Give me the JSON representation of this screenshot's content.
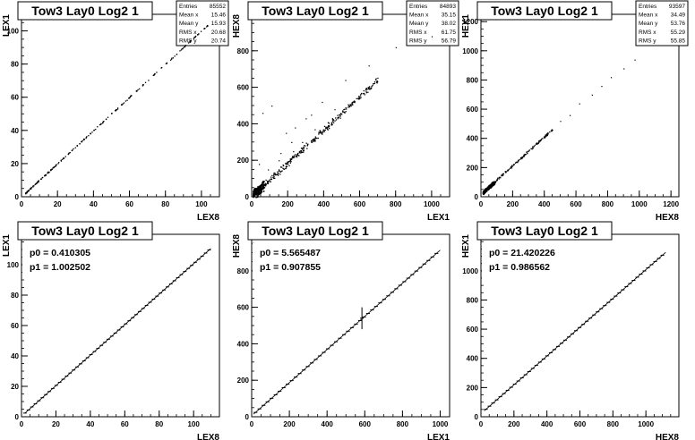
{
  "chart_data": [
    {
      "type": "scatter",
      "title": "Tow3 Lay0 Log2 1",
      "xlabel": "LEX8",
      "ylabel": "LEX1",
      "xlim": [
        0,
        110
      ],
      "ylim": [
        0,
        110
      ],
      "xticks": [
        0,
        20,
        40,
        60,
        80,
        100
      ],
      "yticks": [
        0,
        20,
        40,
        60,
        80,
        100
      ],
      "stats": [
        {
          "label": "Entries",
          "value": "85552"
        },
        {
          "label": "Mean x",
          "value": "15.46"
        },
        {
          "label": "Mean y",
          "value": "15.93"
        },
        {
          "label": "RMS x",
          "value": "20.68"
        },
        {
          "label": "RMS y",
          "value": "20.74"
        }
      ],
      "trend": {
        "slope": 1.0,
        "intercept": 0.4,
        "xmin": 2,
        "xmax": 105,
        "spread": 0.5,
        "tail": 0
      },
      "points": 220
    },
    {
      "type": "scatter",
      "title": "Tow3 Lay0 Log2 1",
      "xlabel": "LEX1",
      "ylabel": "HEX8",
      "xlim": [
        0,
        1100
      ],
      "ylim": [
        0,
        1000
      ],
      "xticks": [
        0,
        200,
        400,
        600,
        800,
        1000
      ],
      "yticks": [
        0,
        200,
        400,
        600,
        800
      ],
      "stats": [
        {
          "label": "Entries",
          "value": "84893"
        },
        {
          "label": "Mean x",
          "value": "35.15"
        },
        {
          "label": "Mean y",
          "value": "38.02"
        },
        {
          "label": "RMS x",
          "value": "61.75"
        },
        {
          "label": "RMS y",
          "value": "56.79"
        }
      ],
      "trend": {
        "slope": 0.91,
        "intercept": 5.6,
        "xmin": 5,
        "xmax": 700,
        "spread": 22,
        "tail": 0
      },
      "outliers": [
        [
          60,
          460
        ],
        [
          110,
          500
        ],
        [
          190,
          350
        ],
        [
          240,
          380
        ],
        [
          220,
          300
        ],
        [
          160,
          240
        ],
        [
          300,
          430
        ],
        [
          390,
          520
        ],
        [
          330,
          450
        ],
        [
          520,
          640
        ],
        [
          650,
          720
        ],
        [
          800,
          820
        ],
        [
          1000,
          880
        ],
        [
          280,
          300
        ],
        [
          150,
          200
        ],
        [
          90,
          150
        ],
        [
          40,
          180
        ],
        [
          230,
          250
        ],
        [
          350,
          370
        ],
        [
          460,
          480
        ]
      ],
      "points": 380
    },
    {
      "type": "scatter",
      "title": "Tow3 Lay0 Log2 1",
      "xlabel": "HEX8",
      "ylabel": "HEX1",
      "xlim": [
        0,
        1250
      ],
      "ylim": [
        0,
        1250
      ],
      "xticks": [
        0,
        200,
        400,
        600,
        800,
        1000,
        1200
      ],
      "yticks": [
        0,
        200,
        400,
        600,
        800,
        1000,
        1200
      ],
      "stats": [
        {
          "label": "Entries",
          "value": "93597"
        },
        {
          "label": "Mean x",
          "value": "34.49"
        },
        {
          "label": "Mean y",
          "value": "53.76"
        },
        {
          "label": "RMS x",
          "value": "55.29"
        },
        {
          "label": "RMS y",
          "value": "55.85"
        }
      ],
      "trend": {
        "slope": 0.986,
        "intercept": 21.4,
        "xmin": 10,
        "xmax": 450,
        "spread": 10,
        "tail": 0
      },
      "outliers": [
        [
          500,
          520
        ],
        [
          560,
          560
        ],
        [
          620,
          640
        ],
        [
          700,
          700
        ],
        [
          760,
          760
        ],
        [
          820,
          820
        ],
        [
          900,
          880
        ],
        [
          970,
          940
        ],
        [
          420,
          440
        ],
        [
          380,
          400
        ]
      ],
      "points": 200
    },
    {
      "type": "line",
      "title": "Tow3 Lay0 Log2 1",
      "xlabel": "LEX8",
      "ylabel": "LEX1",
      "xlim": [
        0,
        115
      ],
      "ylim": [
        0,
        120
      ],
      "xticks": [
        0,
        20,
        40,
        60,
        80,
        100
      ],
      "yticks": [
        0,
        20,
        40,
        60,
        80,
        100
      ],
      "fit_params": [
        "p0 = 0.410305",
        "p1 = 1.002502"
      ],
      "fit": {
        "p0": 0.410305,
        "p1": 1.002502,
        "xmin": 2,
        "xmax": 110
      },
      "profile": {
        "xmin": 2,
        "xmax": 109,
        "n": 54,
        "half_width": 1
      }
    },
    {
      "type": "line",
      "title": "Tow3 Lay0 Log2 1",
      "xlabel": "LEX1",
      "ylabel": "HEX8",
      "xlim": [
        0,
        1050
      ],
      "ylim": [
        0,
        1000
      ],
      "xticks": [
        0,
        200,
        400,
        600,
        800,
        1000
      ],
      "yticks": [
        0,
        200,
        400,
        600,
        800
      ],
      "fit_params": [
        "p0 = 5.565487",
        "p1 = 0.907855"
      ],
      "fit": {
        "p0": 5.565487,
        "p1": 0.907855,
        "xmin": 10,
        "xmax": 1000
      },
      "profile": {
        "xmin": 20,
        "xmax": 980,
        "n": 46,
        "half_width": 10,
        "error_bar": {
          "x": 585,
          "y": 540,
          "err": 60
        }
      }
    },
    {
      "type": "line",
      "title": "Tow3 Lay0 Log2 1",
      "xlabel": "HEX8",
      "ylabel": "HEX1",
      "xlim": [
        0,
        1200
      ],
      "ylim": [
        0,
        1250
      ],
      "xticks": [
        0,
        200,
        400,
        600,
        800,
        1000
      ],
      "yticks": [
        0,
        200,
        400,
        600,
        800,
        1000
      ],
      "fit_params": [
        "p0 = 21.420226",
        "p1 = 0.986562"
      ],
      "fit": {
        "p0": 21.420226,
        "p1": 0.986562,
        "xmin": 20,
        "xmax": 1120
      },
      "profile": {
        "xmin": 30,
        "xmax": 1100,
        "n": 50,
        "half_width": 11
      }
    }
  ]
}
